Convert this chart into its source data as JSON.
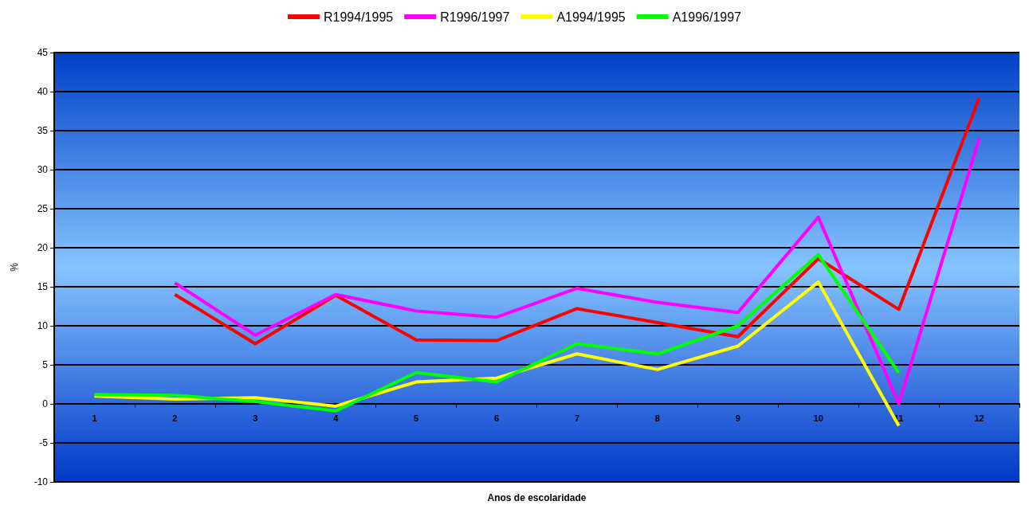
{
  "chart_data": {
    "type": "line",
    "xlabel": "Anos de escolaridade",
    "ylabel": "%",
    "categories": [
      "1",
      "2",
      "3",
      "4",
      "5",
      "6",
      "7",
      "8",
      "9",
      "10",
      "11",
      "12"
    ],
    "series": [
      {
        "name": "R1994/1995",
        "color": "#ff0000",
        "values": [
          null,
          14,
          7.7,
          13.9,
          8.2,
          8.1,
          12.2,
          10.4,
          8.6,
          18.6,
          12.1,
          39.2
        ]
      },
      {
        "name": "R1996/1997",
        "color": "#ff00ff",
        "values": [
          null,
          15.5,
          8.8,
          14,
          11.9,
          11.1,
          14.8,
          13,
          11.7,
          23.9,
          0,
          34
        ]
      },
      {
        "name": "A1994/1995",
        "color": "#ffff00",
        "values": [
          1,
          0.6,
          0.8,
          -0.3,
          2.8,
          3.3,
          6.4,
          4.4,
          7.4,
          15.6,
          -2.8,
          null
        ]
      },
      {
        "name": "A1996/1997",
        "color": "#00ff00",
        "values": [
          1.2,
          1.1,
          0.3,
          -0.9,
          4,
          2.8,
          7.7,
          6.4,
          10,
          19.1,
          4,
          null
        ]
      }
    ],
    "ylim": [
      -10,
      45
    ],
    "yticks": [
      -10,
      -5,
      0,
      5,
      10,
      15,
      20,
      25,
      30,
      35,
      40,
      45
    ],
    "grid": "y",
    "legend": "top",
    "marker": "none",
    "line_style": "solid"
  }
}
